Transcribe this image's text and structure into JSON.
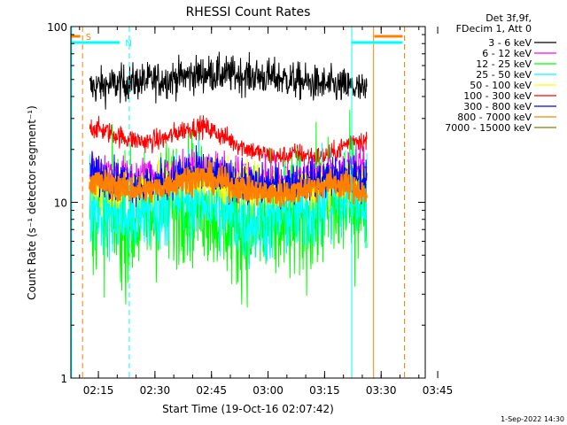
{
  "chart_data": {
    "type": "line",
    "title": "RHESSI Count Rates",
    "xlabel": "Start Time (19-Oct-16 02:07:42)",
    "ylabel": "Count Rate (s⁻¹ detector segment⁻¹)",
    "yscale": "log",
    "ylim": [
      1,
      100
    ],
    "xlim_minutes": [
      0,
      94
    ],
    "x_ticks": [
      {
        "label": "02:15",
        "minute": 7.3
      },
      {
        "label": "02:30",
        "minute": 22.3
      },
      {
        "label": "02:45",
        "minute": 37.3
      },
      {
        "label": "03:00",
        "minute": 52.3
      },
      {
        "label": "03:15",
        "minute": 67.3
      },
      {
        "label": "03:30",
        "minute": 82.3
      },
      {
        "label": "03:45",
        "minute": 97.3
      }
    ],
    "y_ticks": [
      {
        "label": "1",
        "value": 1
      },
      {
        "label": "10",
        "value": 10
      },
      {
        "label": "100",
        "value": 100
      }
    ],
    "legend": {
      "placement": "top-right",
      "header": [
        "Det 3f,9f,",
        "FDecim 1, Att 0"
      ],
      "entries": [
        {
          "label": "3 - 6 keV",
          "color": "#000000"
        },
        {
          "label": "6 - 12 keV",
          "color": "#ff00ff"
        },
        {
          "label": "12 - 25 keV",
          "color": "#00ff00"
        },
        {
          "label": "25 - 50 keV",
          "color": "#00ffff"
        },
        {
          "label": "50 - 100 keV",
          "color": "#ffff00"
        },
        {
          "label": "100 - 300 keV",
          "color": "#ff0000"
        },
        {
          "label": "300 - 800 keV",
          "color": "#0000ff"
        },
        {
          "label": "800 - 7000 keV",
          "color": "#ff8000"
        },
        {
          "label": "7000 - 15000 keV",
          "color": "#808000"
        }
      ]
    },
    "series": [
      {
        "name": "3 - 6 keV",
        "color": "#000000",
        "noise": 0.12,
        "x": [
          5,
          15,
          25,
          35,
          45,
          55,
          65,
          75,
          78.5
        ],
        "y": [
          45,
          48,
          50,
          54,
          53,
          51,
          47,
          45,
          42
        ]
      },
      {
        "name": "100 - 300 keV",
        "color": "#ff0000",
        "noise": 0.07,
        "x": [
          5,
          10,
          15,
          20,
          25,
          30,
          35,
          40,
          45,
          50,
          55,
          60,
          65,
          70,
          75,
          78.5
        ],
        "y": [
          27,
          25,
          23,
          22,
          23,
          26,
          27,
          24,
          21,
          19,
          18,
          19,
          18,
          19,
          23,
          22
        ]
      },
      {
        "name": "12 - 25 keV",
        "color": "#00ff00",
        "noise": 0.42,
        "x": [
          5,
          10,
          15,
          20,
          25,
          30,
          35,
          40,
          45,
          50,
          55,
          60,
          65,
          70,
          75,
          78.5
        ],
        "y": [
          10,
          8.3,
          7.6,
          8.2,
          9.4,
          10.8,
          10.4,
          8.6,
          7.2,
          6.9,
          7.4,
          8.1,
          8.8,
          9.6,
          10.4,
          9.8
        ]
      },
      {
        "name": "25 - 50 keV",
        "color": "#00ffff",
        "noise": 0.3,
        "x": [
          5,
          10,
          15,
          20,
          25,
          30,
          35,
          40,
          45,
          50,
          55,
          60,
          65,
          70,
          75,
          78.5
        ],
        "y": [
          10.3,
          8.8,
          8.2,
          8.8,
          10,
          11.2,
          10.8,
          9.2,
          8.1,
          7.9,
          8.3,
          9.1,
          9.7,
          10.3,
          11,
          10.5
        ]
      },
      {
        "name": "6 - 12 keV",
        "color": "#ff00ff",
        "noise": 0.12,
        "x": [
          5,
          15,
          25,
          35,
          45,
          55,
          65,
          75,
          78.5
        ],
        "y": [
          15.5,
          14,
          14.5,
          15.5,
          14,
          13,
          14,
          15.5,
          15
        ]
      },
      {
        "name": "50 - 100 keV",
        "color": "#ffff00",
        "noise": 0.15,
        "x": [
          5,
          15,
          25,
          35,
          45,
          55,
          65,
          75,
          78.5
        ],
        "y": [
          12.5,
          12,
          13,
          13.5,
          12.5,
          12,
          12.5,
          13.5,
          14
        ]
      },
      {
        "name": "300 - 800 keV",
        "color": "#0000ff",
        "noise": 0.13,
        "x": [
          5,
          10,
          15,
          20,
          25,
          30,
          35,
          40,
          45,
          50,
          55,
          60,
          65,
          70,
          75,
          78.5
        ],
        "y": [
          15,
          14,
          13,
          12.5,
          13.5,
          14.5,
          15,
          14,
          13,
          12.5,
          12.5,
          13,
          13.5,
          14,
          14,
          13.5
        ]
      },
      {
        "name": "800 - 7000 keV",
        "color": "#ff8000",
        "noise": 0.09,
        "x": [
          5,
          10,
          15,
          20,
          25,
          30,
          35,
          40,
          45,
          50,
          55,
          60,
          65,
          70,
          75,
          78.5
        ],
        "y": [
          13.2,
          12.6,
          12,
          11.6,
          12.4,
          13.6,
          14,
          13,
          12,
          11.4,
          11.2,
          11.6,
          12.4,
          13,
          12,
          11.2
        ]
      }
    ],
    "bars": {
      "S": {
        "label": "S",
        "color": "#ff8000",
        "intervals": [
          [
            0,
            2.5
          ],
          [
            80.5,
            88
          ]
        ]
      },
      "N": {
        "label": "N",
        "color": "#00ffff",
        "intervals": [
          [
            0,
            13
          ],
          [
            74.5,
            88
          ]
        ]
      }
    },
    "vertical_markers": [
      {
        "minute": 0.2,
        "color": "#00ffff",
        "style": "solid"
      },
      {
        "minute": 3.1,
        "color": "#ff8000",
        "style": "dashed"
      },
      {
        "minute": 15.5,
        "color": "#00ffff",
        "style": "dashed"
      },
      {
        "minute": 74.5,
        "color": "#00ffff",
        "style": "solid"
      },
      {
        "minute": 80.3,
        "color": "#ff8000",
        "style": "solid"
      },
      {
        "minute": 88.5,
        "color": "#00ffff",
        "style": "dashed"
      },
      {
        "minute": 88.5,
        "color": "#ff8000",
        "style": "dashed"
      }
    ]
  },
  "footer_date": "1-Sep-2022 14:30"
}
